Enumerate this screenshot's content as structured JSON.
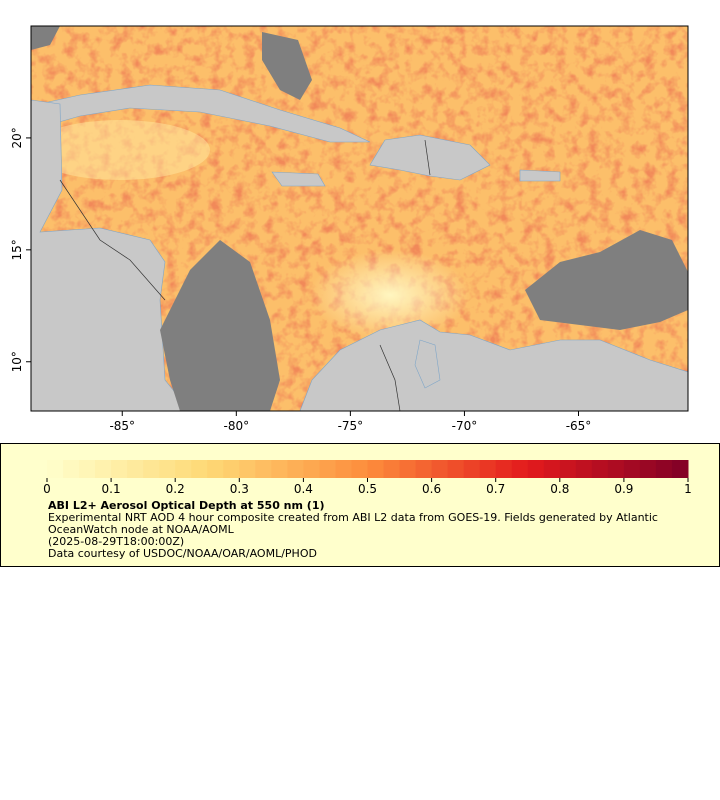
{
  "map": {
    "xlim": [
      -89,
      -60.2
    ],
    "ylim": [
      7.8,
      25
    ],
    "xticks": [
      {
        "value": -85,
        "label": "-85°"
      },
      {
        "value": -80,
        "label": "-80°"
      },
      {
        "value": -75,
        "label": "-75°"
      },
      {
        "value": -70,
        "label": "-70°"
      },
      {
        "value": -65,
        "label": "-65°"
      }
    ],
    "yticks": [
      {
        "value": 10,
        "label": "10°"
      },
      {
        "value": 15,
        "label": "15°"
      },
      {
        "value": 20,
        "label": "20°"
      }
    ]
  },
  "legend": {
    "colorbar": {
      "range": [
        0,
        1
      ],
      "ticks": [
        0,
        0.1,
        0.2,
        0.3,
        0.4,
        0.5,
        0.6,
        0.7,
        0.8,
        0.9,
        1
      ],
      "colors": [
        "#ffffcc",
        "#fed976",
        "#fd8d3c",
        "#e31a1c",
        "#800026"
      ]
    },
    "title": "ABI L2+ Aerosol Optical Depth at 550 nm (1)",
    "description": "Experimental NRT AOD 4 hour composite created from ABI L2 data from GOES-19. Fields generated by Atlantic OceanWatch node at NOAA/AOML",
    "time": "(2025-08-29T18:00:00Z)",
    "credit": "Data courtesy of USDOC/NOAA/OAR/AOML/PHOD"
  }
}
